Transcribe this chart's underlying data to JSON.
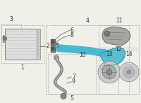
{
  "bg_color": "#f0efe8",
  "border_color": "#aaaaaa",
  "line_color": "#555555",
  "part_color": "#4ab8d0",
  "gray_color": "#888888",
  "label_color": "#333333",
  "white": "#ffffff"
}
